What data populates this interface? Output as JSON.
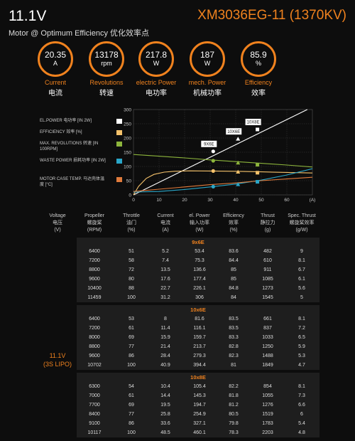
{
  "header": {
    "voltage": "11.1V",
    "model": "XM3036EG-11 (1370KV)",
    "subtitle": "Motor @ Optimum Efficiency  优化效率点"
  },
  "gauges": [
    {
      "value": "20.35",
      "unit": "A",
      "label": "Current",
      "label_cn": "电流"
    },
    {
      "value": "13178",
      "unit": "rpm",
      "label": "Revolutions",
      "label_cn": "转速"
    },
    {
      "value": "217.8",
      "unit": "W",
      "label": "electric Power",
      "label_cn": "电功率"
    },
    {
      "value": "187",
      "unit": "W",
      "label": "mech. Power",
      "label_cn": "机械功率"
    },
    {
      "value": "85.9",
      "unit": "%",
      "label": "Efficiency",
      "label_cn": "效率"
    }
  ],
  "colors": {
    "accent": "#f0821e",
    "white": "#ffffff",
    "efficiency": "#f5c26b",
    "revolutions": "#8db53c",
    "waste": "#2aa7c9",
    "temp": "#e07b3c"
  },
  "chart_data": {
    "type": "line",
    "xlim": [
      0,
      70
    ],
    "ylim": [
      0,
      300
    ],
    "x_ticks": [
      0,
      10,
      20,
      30,
      40,
      50,
      60,
      "(A)"
    ],
    "y_ticks": [
      0,
      50,
      100,
      150,
      200,
      250,
      300
    ],
    "legend": [
      {
        "label": "EL.POWER 电功率 [IN 2W]",
        "color": "#ffffff"
      },
      {
        "label": "EFFICIENCY 效率 [%]",
        "color": "#f5c26b"
      },
      {
        "label": "MAX. REVOLUTIONS 转速 [IN 100RPM]",
        "color": "#8db53c"
      },
      {
        "label": "WASTE POWER 损耗功率 [IN 2W]",
        "color": "#2aa7c9"
      },
      {
        "label": "MOTOR CASE TEMP. 马达壳体温度 [°C]",
        "color": "#e07b3c"
      }
    ],
    "series": [
      {
        "key": "el_power",
        "color": "#ffffff",
        "marker": "none",
        "x": [
          0,
          68
        ],
        "y": [
          0,
          300
        ]
      },
      {
        "key": "efficiency",
        "color": "#f5c26b",
        "marker": "none",
        "x": [
          0,
          2,
          5,
          8,
          12,
          16,
          22,
          30,
          40,
          50,
          60,
          70
        ],
        "y": [
          0,
          30,
          58,
          72,
          80,
          83,
          84.5,
          84,
          83,
          81,
          79,
          77
        ]
      },
      {
        "key": "revolutions",
        "color": "#8db53c",
        "marker": "none",
        "x": [
          0,
          10,
          20,
          30,
          40,
          50,
          60,
          70
        ],
        "y": [
          142,
          136,
          130,
          123,
          117,
          111,
          105,
          98
        ]
      },
      {
        "key": "waste",
        "color": "#2aa7c9",
        "marker": "none",
        "x": [
          0,
          10,
          20,
          30,
          40,
          50,
          60,
          70
        ],
        "y": [
          10,
          12,
          19,
          28,
          38,
          52,
          70,
          92
        ]
      },
      {
        "key": "temp",
        "color": "#e07b3c",
        "marker": "none",
        "x": [
          0,
          10,
          20,
          30,
          40,
          50,
          60,
          70
        ],
        "y": [
          12,
          20,
          28,
          36,
          42,
          50,
          56,
          62
        ]
      }
    ],
    "points": [
      {
        "color": "#ffffff",
        "marker": "circle",
        "x": 31.2,
        "y": 153
      },
      {
        "color": "#ffffff",
        "marker": "triangle",
        "x": 40.9,
        "y": 197
      },
      {
        "color": "#ffffff",
        "marker": "square",
        "x": 48.5,
        "y": 230
      },
      {
        "color": "#8db53c",
        "marker": "circle",
        "x": 31.2,
        "y": 120
      },
      {
        "color": "#8db53c",
        "marker": "triangle",
        "x": 40.9,
        "y": 113
      },
      {
        "color": "#8db53c",
        "marker": "square",
        "x": 48.5,
        "y": 106
      },
      {
        "color": "#f5c26b",
        "marker": "circle",
        "x": 31.2,
        "y": 84
      },
      {
        "color": "#f5c26b",
        "marker": "triangle",
        "x": 40.9,
        "y": 81
      },
      {
        "color": "#f5c26b",
        "marker": "square",
        "x": 48.5,
        "y": 78
      },
      {
        "color": "#2aa7c9",
        "marker": "circle",
        "x": 31.2,
        "y": 29
      },
      {
        "color": "#2aa7c9",
        "marker": "triangle",
        "x": 40.9,
        "y": 37
      },
      {
        "color": "#2aa7c9",
        "marker": "square",
        "x": 48.5,
        "y": 46
      }
    ],
    "annotations": [
      {
        "text": "9X6E",
        "x": 31.2,
        "y": 153
      },
      {
        "text": "10X6E",
        "x": 40.9,
        "y": 197
      },
      {
        "text": "10X8E",
        "x": 48.5,
        "y": 230
      }
    ]
  },
  "table": {
    "headers": [
      [
        "Voltage",
        "电压",
        "(V)"
      ],
      [
        "Propeller",
        "螺旋桨",
        "(RPM)"
      ],
      [
        "Throttle",
        "油门",
        "(%)"
      ],
      [
        "Current",
        "电流",
        "(A)"
      ],
      [
        "el. Power",
        "输入功率",
        "(W)"
      ],
      [
        "Efficiency",
        "效率",
        "(%)"
      ],
      [
        "Thrust",
        "静拉力",
        "(g)"
      ],
      [
        "Spec. Thrust",
        "螺旋桨效率",
        "(g/W)"
      ]
    ],
    "voltage": "11.1V",
    "voltage_note": "(3S LIPO)",
    "sections": [
      {
        "title": "9x6E",
        "rows": [
          [
            "6400",
            "51",
            "5.2",
            "53.4",
            "83.6",
            "482",
            "9"
          ],
          [
            "7200",
            "58",
            "7.4",
            "75.3",
            "84.4",
            "610",
            "8.1"
          ],
          [
            "8800",
            "72",
            "13.5",
            "136.6",
            "85",
            "911",
            "6.7"
          ],
          [
            "9600",
            "80",
            "17.6",
            "177.4",
            "85",
            "1085",
            "6.1"
          ],
          [
            "10400",
            "88",
            "22.7",
            "226.1",
            "84.8",
            "1273",
            "5.6"
          ],
          [
            "11459",
            "100",
            "31.2",
            "306",
            "84",
            "1545",
            "5"
          ]
        ]
      },
      {
        "title": "10x6E",
        "rows": [
          [
            "6400",
            "53",
            "8",
            "81.6",
            "83.5",
            "661",
            "8.1"
          ],
          [
            "7200",
            "61",
            "11.4",
            "116.1",
            "83.5",
            "837",
            "7.2"
          ],
          [
            "8000",
            "69",
            "15.9",
            "159.7",
            "83.3",
            "1033",
            "6.5"
          ],
          [
            "8800",
            "77",
            "21.4",
            "213.7",
            "82.8",
            "1250",
            "5.9"
          ],
          [
            "9600",
            "86",
            "28.4",
            "279.3",
            "82.3",
            "1488",
            "5.3"
          ],
          [
            "10702",
            "100",
            "40.9",
            "394.4",
            "81",
            "1849",
            "4.7"
          ]
        ]
      },
      {
        "title": "10x8E",
        "rows": [
          [
            "6300",
            "54",
            "10.4",
            "105.4",
            "82.2",
            "854",
            "8.1"
          ],
          [
            "7000",
            "61",
            "14.4",
            "145.3",
            "81.8",
            "1055",
            "7.3"
          ],
          [
            "7700",
            "69",
            "19.5",
            "194.7",
            "81.2",
            "1276",
            "6.6"
          ],
          [
            "8400",
            "77",
            "25.8",
            "254.9",
            "80.5",
            "1519",
            "6"
          ],
          [
            "9100",
            "86",
            "33.6",
            "327.1",
            "79.8",
            "1783",
            "5.4"
          ],
          [
            "10117",
            "100",
            "48.5",
            "460.1",
            "78.3",
            "2203",
            "4.8"
          ]
        ]
      }
    ]
  }
}
